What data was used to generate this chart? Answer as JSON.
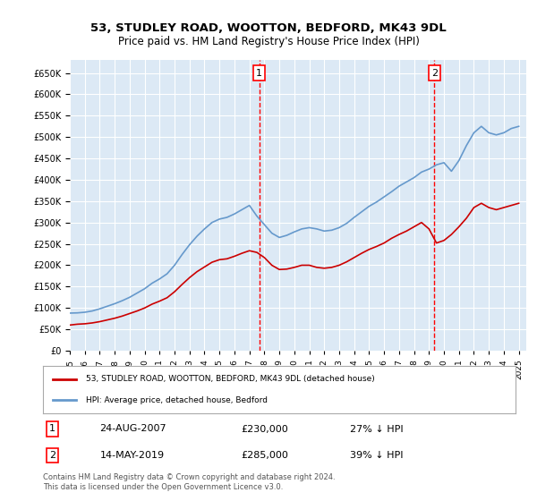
{
  "title": "53, STUDLEY ROAD, WOOTTON, BEDFORD, MK43 9DL",
  "subtitle": "Price paid vs. HM Land Registry's House Price Index (HPI)",
  "ylabel_ticks": [
    "£0",
    "£50K",
    "£100K",
    "£150K",
    "£200K",
    "£250K",
    "£300K",
    "£350K",
    "£400K",
    "£450K",
    "£500K",
    "£550K",
    "£600K",
    "£650K"
  ],
  "ylim": [
    0,
    680000
  ],
  "xlim_start": 1995.0,
  "xlim_end": 2025.5,
  "bg_color": "#dce9f5",
  "plot_bg": "#dce9f5",
  "grid_color": "#ffffff",
  "red_line_color": "#cc0000",
  "blue_line_color": "#6699cc",
  "annotation1": {
    "x": 2007.65,
    "label": "1",
    "date": "24-AUG-2007",
    "price": "£230,000",
    "note": "27% ↓ HPI"
  },
  "annotation2": {
    "x": 2019.37,
    "label": "2",
    "date": "14-MAY-2019",
    "price": "£285,000",
    "note": "39% ↓ HPI"
  },
  "legend_line1": "53, STUDLEY ROAD, WOOTTON, BEDFORD, MK43 9DL (detached house)",
  "legend_line2": "HPI: Average price, detached house, Bedford",
  "footer": "Contains HM Land Registry data © Crown copyright and database right 2024.\nThis data is licensed under the Open Government Licence v3.0.",
  "hpi_x": [
    1995.0,
    1995.5,
    1996.0,
    1996.5,
    1997.0,
    1997.5,
    1998.0,
    1998.5,
    1999.0,
    1999.5,
    2000.0,
    2000.5,
    2001.0,
    2001.5,
    2002.0,
    2002.5,
    2003.0,
    2003.5,
    2004.0,
    2004.5,
    2005.0,
    2005.5,
    2006.0,
    2006.5,
    2007.0,
    2007.5,
    2008.0,
    2008.5,
    2009.0,
    2009.5,
    2010.0,
    2010.5,
    2011.0,
    2011.5,
    2012.0,
    2012.5,
    2013.0,
    2013.5,
    2014.0,
    2014.5,
    2015.0,
    2015.5,
    2016.0,
    2016.5,
    2017.0,
    2017.5,
    2018.0,
    2018.5,
    2019.0,
    2019.5,
    2020.0,
    2020.5,
    2021.0,
    2021.5,
    2022.0,
    2022.5,
    2023.0,
    2023.5,
    2024.0,
    2024.5,
    2025.0
  ],
  "hpi_y": [
    88000,
    88500,
    90000,
    93000,
    98000,
    104000,
    110000,
    117000,
    125000,
    135000,
    145000,
    158000,
    168000,
    180000,
    200000,
    225000,
    248000,
    268000,
    285000,
    300000,
    308000,
    312000,
    320000,
    330000,
    340000,
    315000,
    295000,
    275000,
    265000,
    270000,
    278000,
    285000,
    288000,
    285000,
    280000,
    282000,
    288000,
    298000,
    312000,
    325000,
    338000,
    348000,
    360000,
    372000,
    385000,
    395000,
    405000,
    418000,
    425000,
    435000,
    440000,
    420000,
    445000,
    480000,
    510000,
    525000,
    510000,
    505000,
    510000,
    520000,
    525000
  ],
  "red_x": [
    1995.0,
    1995.5,
    1996.0,
    1996.5,
    1997.0,
    1997.5,
    1998.0,
    1998.5,
    1999.0,
    1999.5,
    2000.0,
    2000.5,
    2001.0,
    2001.5,
    2002.0,
    2002.5,
    2003.0,
    2003.5,
    2004.0,
    2004.5,
    2005.0,
    2005.5,
    2006.0,
    2006.5,
    2007.0,
    2007.5,
    2008.0,
    2008.5,
    2009.0,
    2009.5,
    2010.0,
    2010.5,
    2011.0,
    2011.5,
    2012.0,
    2012.5,
    2013.0,
    2013.5,
    2014.0,
    2014.5,
    2015.0,
    2015.5,
    2016.0,
    2016.5,
    2017.0,
    2017.5,
    2018.0,
    2018.5,
    2019.0,
    2019.5,
    2020.0,
    2020.5,
    2021.0,
    2021.5,
    2022.0,
    2022.5,
    2023.0,
    2023.5,
    2024.0,
    2024.5,
    2025.0
  ],
  "red_y": [
    60000,
    62000,
    63000,
    65000,
    68000,
    72000,
    76000,
    81000,
    87000,
    93000,
    100000,
    109000,
    116000,
    124000,
    138000,
    155000,
    171000,
    185000,
    196000,
    207000,
    213000,
    215000,
    221000,
    228000,
    234000,
    230000,
    218000,
    200000,
    190000,
    191000,
    195000,
    200000,
    200000,
    195000,
    193000,
    195000,
    200000,
    208000,
    218000,
    228000,
    237000,
    244000,
    252000,
    263000,
    272000,
    280000,
    290000,
    300000,
    285000,
    252000,
    258000,
    272000,
    290000,
    310000,
    335000,
    345000,
    335000,
    330000,
    335000,
    340000,
    345000
  ]
}
